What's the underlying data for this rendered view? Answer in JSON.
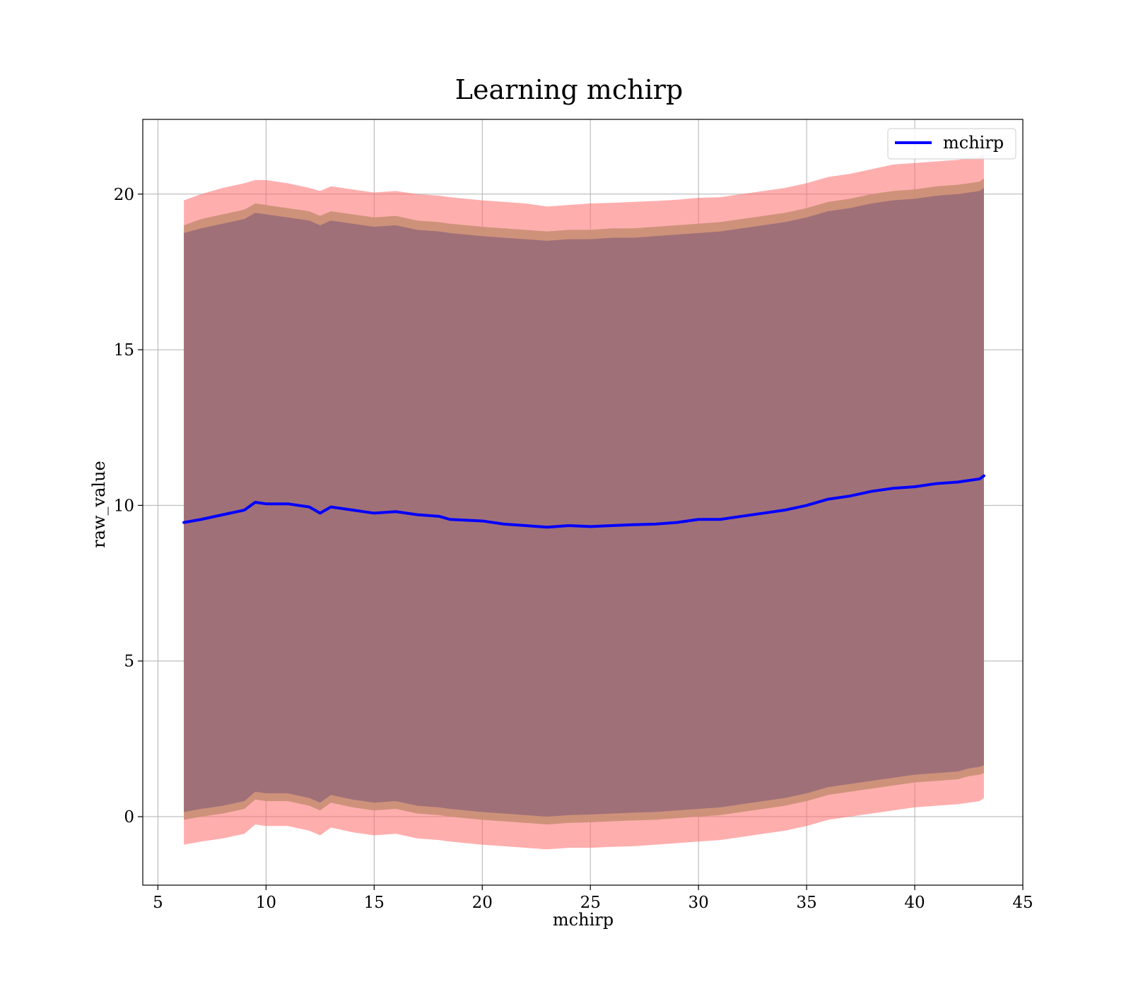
{
  "chart_data": {
    "type": "area",
    "title": "Learning mchirp",
    "xlabel": "mchirp",
    "ylabel": "raw_value",
    "xlim": [
      4.3,
      45
    ],
    "ylim": [
      -2.2,
      22.4
    ],
    "xticks": [
      "5",
      "10",
      "15",
      "20",
      "25",
      "30",
      "35",
      "40",
      "45"
    ],
    "yticks": [
      "0",
      "5",
      "10",
      "15",
      "20"
    ],
    "grid": true,
    "legend_position": "top-right",
    "legend": [
      "mchirp"
    ],
    "colors": {
      "line": "#0000ff",
      "band_outer": "#ff6b6b",
      "band_middle": "#c98f74",
      "band_inner": "#a07079",
      "grid": "#b0b0b0"
    },
    "x": [
      6.2,
      7,
      8,
      9,
      9.5,
      10,
      11,
      12,
      12.5,
      13,
      14,
      15,
      16,
      17,
      18,
      18.5,
      20,
      21,
      22,
      23,
      24,
      25,
      26,
      27,
      28,
      29,
      30,
      31,
      32,
      33,
      34,
      35,
      36,
      37,
      38,
      39,
      40,
      41,
      42,
      42.5,
      43,
      43.2
    ],
    "series": [
      {
        "name": "mchirp",
        "values": [
          9.45,
          9.55,
          9.7,
          9.85,
          10.1,
          10.05,
          10.05,
          9.95,
          9.75,
          9.95,
          9.85,
          9.75,
          9.8,
          9.7,
          9.65,
          9.55,
          9.5,
          9.4,
          9.35,
          9.3,
          9.35,
          9.32,
          9.35,
          9.38,
          9.4,
          9.45,
          9.55,
          9.55,
          9.65,
          9.75,
          9.85,
          10.0,
          10.2,
          10.3,
          10.45,
          10.55,
          10.6,
          10.7,
          10.75,
          10.8,
          10.85,
          10.95
        ]
      }
    ],
    "bands": [
      {
        "upper": [
          19.8,
          20.0,
          20.2,
          20.35,
          20.45,
          20.45,
          20.35,
          20.2,
          20.1,
          20.25,
          20.15,
          20.05,
          20.1,
          20.0,
          19.95,
          19.9,
          19.8,
          19.75,
          19.7,
          19.6,
          19.65,
          19.7,
          19.72,
          19.75,
          19.78,
          19.82,
          19.88,
          19.9,
          20.0,
          20.1,
          20.2,
          20.35,
          20.55,
          20.65,
          20.8,
          20.95,
          21.0,
          21.05,
          21.1,
          21.15,
          21.2,
          21.3
        ],
        "lower": [
          -0.9,
          -0.8,
          -0.7,
          -0.55,
          -0.25,
          -0.3,
          -0.3,
          -0.45,
          -0.6,
          -0.35,
          -0.5,
          -0.6,
          -0.55,
          -0.7,
          -0.75,
          -0.8,
          -0.9,
          -0.95,
          -1.0,
          -1.05,
          -1.0,
          -1.0,
          -0.97,
          -0.95,
          -0.9,
          -0.85,
          -0.8,
          -0.75,
          -0.65,
          -0.55,
          -0.45,
          -0.3,
          -0.1,
          0.0,
          0.1,
          0.2,
          0.3,
          0.35,
          0.4,
          0.45,
          0.5,
          0.6
        ]
      },
      {
        "upper": [
          19.0,
          19.2,
          19.35,
          19.5,
          19.7,
          19.65,
          19.55,
          19.45,
          19.3,
          19.45,
          19.35,
          19.25,
          19.3,
          19.15,
          19.1,
          19.05,
          18.95,
          18.9,
          18.85,
          18.8,
          18.85,
          18.85,
          18.9,
          18.9,
          18.95,
          19.0,
          19.05,
          19.1,
          19.2,
          19.3,
          19.4,
          19.55,
          19.75,
          19.85,
          20.0,
          20.1,
          20.15,
          20.25,
          20.3,
          20.35,
          20.4,
          20.5
        ],
        "lower": [
          -0.1,
          0.0,
          0.1,
          0.25,
          0.55,
          0.5,
          0.5,
          0.35,
          0.2,
          0.45,
          0.3,
          0.2,
          0.25,
          0.1,
          0.05,
          0.0,
          -0.1,
          -0.15,
          -0.2,
          -0.25,
          -0.2,
          -0.18,
          -0.15,
          -0.12,
          -0.1,
          -0.05,
          0.0,
          0.05,
          0.15,
          0.25,
          0.35,
          0.5,
          0.7,
          0.8,
          0.9,
          1.0,
          1.1,
          1.15,
          1.2,
          1.3,
          1.35,
          1.4
        ]
      },
      {
        "upper": [
          18.75,
          18.9,
          19.05,
          19.2,
          19.4,
          19.35,
          19.25,
          19.15,
          19.0,
          19.15,
          19.05,
          18.95,
          19.0,
          18.85,
          18.8,
          18.75,
          18.65,
          18.6,
          18.55,
          18.5,
          18.55,
          18.55,
          18.6,
          18.6,
          18.65,
          18.7,
          18.75,
          18.8,
          18.9,
          19.0,
          19.1,
          19.25,
          19.45,
          19.55,
          19.7,
          19.8,
          19.85,
          19.95,
          20.0,
          20.05,
          20.1,
          20.2
        ],
        "lower": [
          0.15,
          0.25,
          0.35,
          0.5,
          0.8,
          0.75,
          0.75,
          0.6,
          0.45,
          0.7,
          0.55,
          0.45,
          0.5,
          0.35,
          0.3,
          0.25,
          0.15,
          0.1,
          0.05,
          0.0,
          0.05,
          0.07,
          0.1,
          0.13,
          0.15,
          0.2,
          0.25,
          0.3,
          0.4,
          0.5,
          0.6,
          0.75,
          0.95,
          1.05,
          1.15,
          1.25,
          1.35,
          1.4,
          1.45,
          1.55,
          1.6,
          1.65
        ]
      }
    ]
  }
}
